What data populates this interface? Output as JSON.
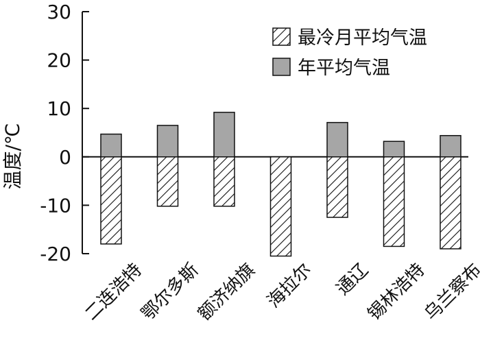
{
  "chart_data": {
    "type": "bar",
    "title": "",
    "xlabel": "",
    "ylabel": "温度/℃",
    "ylim": [
      -20,
      30
    ],
    "yticks": [
      30,
      20,
      10,
      0,
      -10,
      -20
    ],
    "grid": false,
    "legend_position": "top-right",
    "categories": [
      "二连浩特",
      "鄂尔多斯",
      "额济纳旗",
      "海拉尔",
      "通辽",
      "锡林浩特",
      "乌兰察布"
    ],
    "series": [
      {
        "name": "最冷月平均气温",
        "pattern": "hatched",
        "values": [
          -18.0,
          -10.2,
          -10.2,
          -20.5,
          -12.5,
          -18.5,
          -19.0
        ]
      },
      {
        "name": "年平均气温",
        "pattern": "solid",
        "color": "#a6a6a6",
        "values": [
          4.7,
          6.5,
          9.2,
          0.0,
          7.1,
          3.2,
          4.4
        ]
      }
    ]
  }
}
